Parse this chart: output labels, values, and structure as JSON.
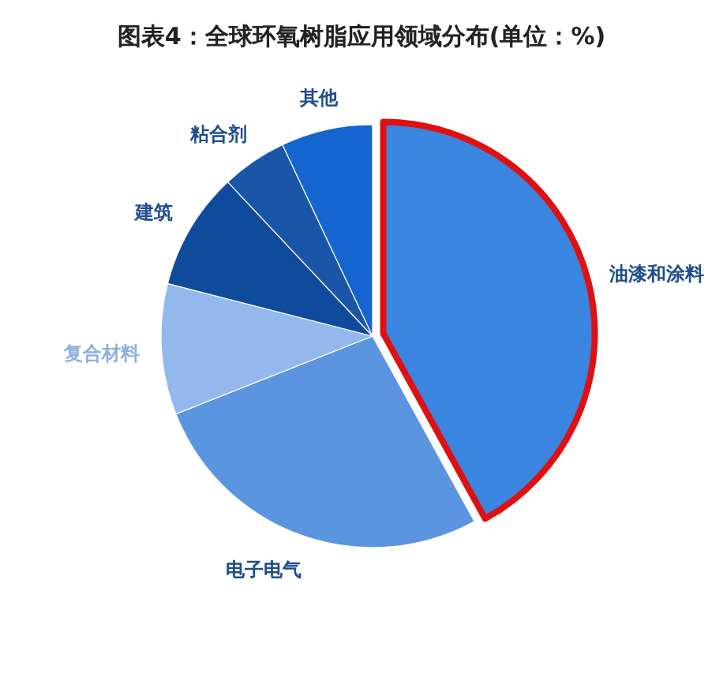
{
  "chart_data": {
    "type": "pie",
    "title": "图表4：全球环氧树脂应用领域分布(单位：%)",
    "categories": [
      "油漆和涂料",
      "电子电气",
      "复合材料",
      "建筑",
      "粘合剂",
      "其他"
    ],
    "values": [
      42,
      27,
      10,
      9,
      5,
      7
    ],
    "colors": [
      "#3a85e0",
      "#5b95e0",
      "#93b8ee",
      "#0f4a9c",
      "#1b55a8",
      "#1565d0"
    ],
    "legend": false
  }
}
